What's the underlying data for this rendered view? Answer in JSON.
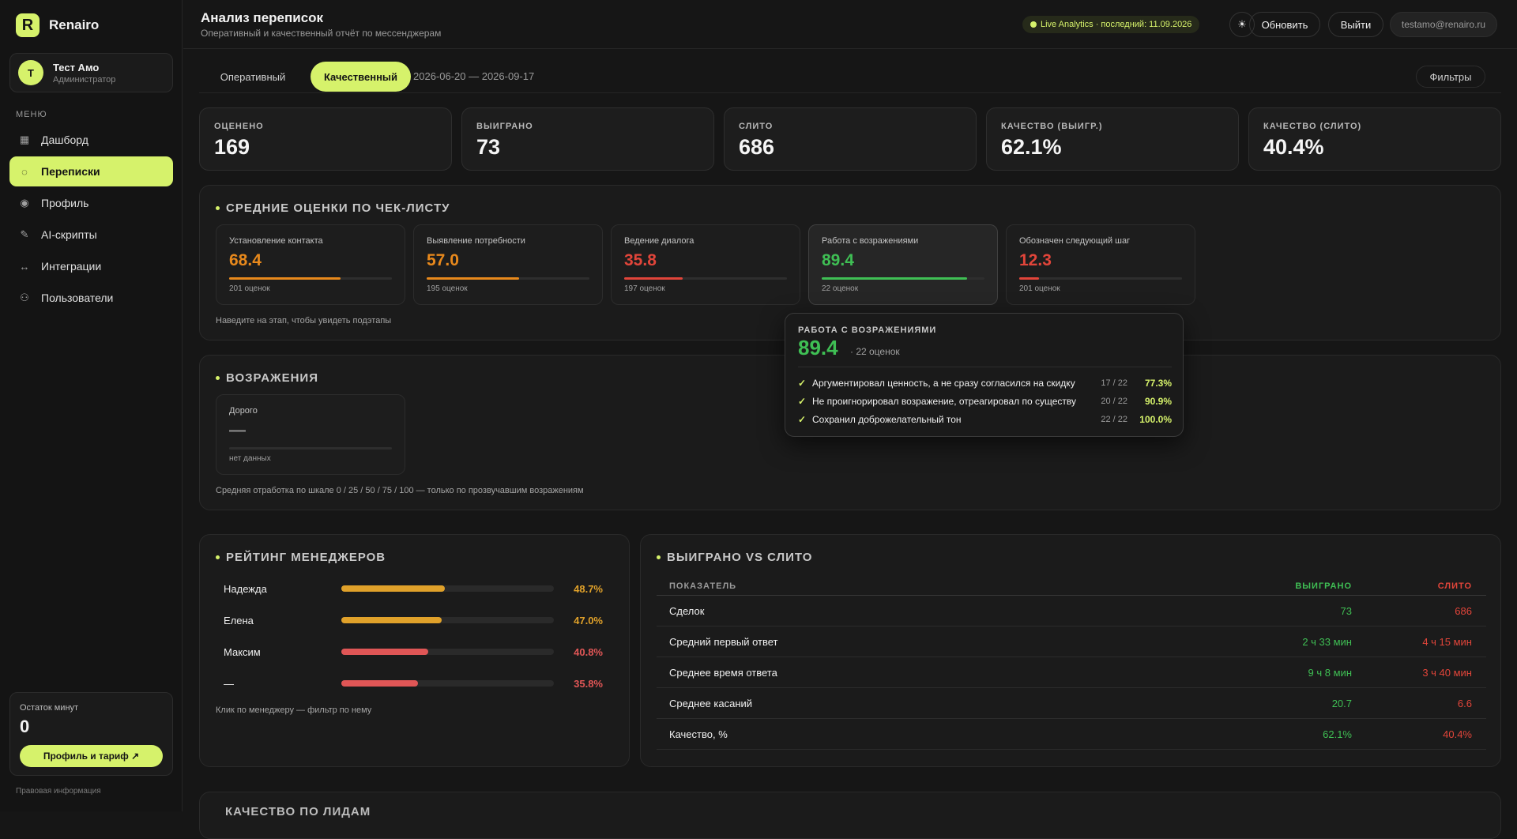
{
  "app": {
    "name": "Renairo",
    "logo_letter": "R"
  },
  "user": {
    "initial": "Т",
    "name": "Тест Амо",
    "role": "Администратор"
  },
  "menu_title": "МЕНЮ",
  "nav": [
    {
      "label": "Дашборд",
      "icon": "grid-icon",
      "active": false
    },
    {
      "label": "Переписки",
      "icon": "chat-icon",
      "active": true
    },
    {
      "label": "Профиль",
      "icon": "profile-icon",
      "active": false
    },
    {
      "label": "AI-скрипты",
      "icon": "pencil-icon",
      "active": false
    },
    {
      "label": "Интеграции",
      "icon": "arrows-icon",
      "active": false
    },
    {
      "label": "Пользователи",
      "icon": "users-icon",
      "active": false
    }
  ],
  "minutes": {
    "label": "Остаток минут",
    "value": "0",
    "button": "Профиль и тариф ↗"
  },
  "legal": "Правовая информация",
  "header": {
    "title": "Анализ переписок",
    "subtitle": "Оперативный и качественный отчёт по мессенджерам",
    "live": "Live Analytics · последний: 11.09.2026",
    "theme_icon": "☀",
    "refresh": "Обновить",
    "logout": "Выйти",
    "email": "testamo@renairo.ru"
  },
  "tabs": {
    "operational": "Оперативный",
    "qualitative": "Качественный",
    "date_range": "2026-06-20 — 2026-09-17",
    "filters": "Фильтры"
  },
  "stats": [
    {
      "label": "ОЦЕНЕНО",
      "value": "169"
    },
    {
      "label": "ВЫИГРАНО",
      "value": "73"
    },
    {
      "label": "СЛИТО",
      "value": "686"
    },
    {
      "label": "КАЧЕСТВО (ВЫИГР.)",
      "value": "62.1%"
    },
    {
      "label": "КАЧЕСТВО (СЛИТО)",
      "value": "40.4%"
    }
  ],
  "checklist": {
    "title": "СРЕДНИЕ ОЦЕНКИ ПО ЧЕК-ЛИСТУ",
    "hint": "Наведите на этап, чтобы увидеть подэтапы",
    "items": [
      {
        "name": "Установление контакта",
        "score": "68.4",
        "count": "201 оценок",
        "level": 0.684,
        "color": "#e8891c"
      },
      {
        "name": "Выявление потребности",
        "score": "57.0",
        "count": "195 оценок",
        "level": 0.57,
        "color": "#e8891c"
      },
      {
        "name": "Ведение диалога",
        "score": "35.8",
        "count": "197 оценок",
        "level": 0.358,
        "color": "#e2453a"
      },
      {
        "name": "Работа с возражениями",
        "score": "89.4",
        "count": "22 оценок",
        "level": 0.894,
        "color": "#3fbf54"
      },
      {
        "name": "Обозначен следующий шаг",
        "score": "12.3",
        "count": "201 оценок",
        "level": 0.123,
        "color": "#e2453a"
      }
    ]
  },
  "tooltip": {
    "title": "РАБОТА С ВОЗРАЖЕНИЯМИ",
    "score": "89.4",
    "count": "· 22 оценок",
    "rows": [
      {
        "check": "✓",
        "text": "Аргументировал ценность, а не сразу согласился на скидку",
        "frac": "17 / 22",
        "pct": "77.3%"
      },
      {
        "check": "✓",
        "text": "Не проигнорировал возражение, отреагировал по существу",
        "frac": "20 / 22",
        "pct": "90.9%"
      },
      {
        "check": "✓",
        "text": "Сохранил доброжелательный тон",
        "frac": "22 / 22",
        "pct": "100.0%"
      }
    ]
  },
  "objections": {
    "title": "ВОЗРАЖЕНИЯ",
    "card": {
      "name": "Дорого",
      "score": "—",
      "count": "нет данных",
      "level": 0
    },
    "hint": "Средняя отработка по шкале 0 / 25 / 50 / 75 / 100 — только по прозвучавшим возражениям"
  },
  "rating": {
    "title": "РЕЙТИНГ МЕНЕДЖЕРОВ",
    "hint": "Клик по менеджеру — фильтр по нему",
    "rows": [
      {
        "name": "Надежда",
        "pct": "48.7%",
        "value": 0.487,
        "color": "#e0a12a"
      },
      {
        "name": "Елена",
        "pct": "47.0%",
        "value": 0.47,
        "color": "#e0a12a"
      },
      {
        "name": "Максим",
        "pct": "40.8%",
        "value": 0.408,
        "color": "#e05656"
      },
      {
        "name": "—",
        "pct": "35.8%",
        "value": 0.358,
        "color": "#e05656"
      }
    ]
  },
  "comparison": {
    "title": "ВЫИГРАНО VS СЛИТО",
    "headers": {
      "metric": "ПОКАЗАТЕЛЬ",
      "won": "ВЫИГРАНО",
      "lost": "СЛИТО"
    },
    "rows": [
      {
        "metric": "Сделок",
        "won": "73",
        "lost": "686"
      },
      {
        "metric": "Средний первый ответ",
        "won": "2 ч 33 мин",
        "lost": "4 ч 15 мин"
      },
      {
        "metric": "Среднее время ответа",
        "won": "9 ч 8 мин",
        "lost": "3 ч 40 мин"
      },
      {
        "metric": "Среднее касаний",
        "won": "20.7",
        "lost": "6.6"
      },
      {
        "metric": "Качество, %",
        "won": "62.1%",
        "lost": "40.4%"
      }
    ]
  },
  "next_section": {
    "title": "КАЧЕСТВО ПО ЛИДАМ"
  }
}
